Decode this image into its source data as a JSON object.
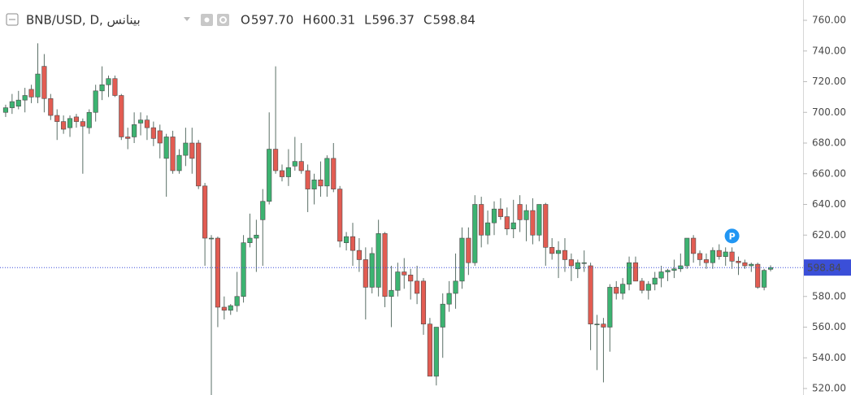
{
  "chart_data": {
    "type": "candlestick",
    "symbol": "BNB/USD, D, بينانس",
    "ohlc_header": [
      {
        "key": "O",
        "value": "597.70"
      },
      {
        "key": "H",
        "value": "600.31"
      },
      {
        "key": "L",
        "value": "596.37"
      },
      {
        "key": "C",
        "value": "598.84"
      }
    ],
    "marker": "P",
    "up_color": "#3cb371",
    "down_color": "#e25c52",
    "wick_color": "#5a6f66",
    "price_line_color": "#3b4fd8",
    "last_price": {
      "value": 598.84,
      "label": "598.84"
    },
    "ylim": [
      520,
      760
    ],
    "yticks": [
      {
        "value": 520,
        "label": "520.00"
      },
      {
        "value": 540,
        "label": "540.00"
      },
      {
        "value": 560,
        "label": "560.00"
      },
      {
        "value": 580,
        "label": "580.00"
      },
      {
        "value": 600,
        "label": "600.00"
      },
      {
        "value": 620,
        "label": "620.00"
      },
      {
        "value": 640,
        "label": "640.00"
      },
      {
        "value": 660,
        "label": "660.00"
      },
      {
        "value": 680,
        "label": "680.00"
      },
      {
        "value": 700,
        "label": "700.00"
      },
      {
        "value": 720,
        "label": "720.00"
      },
      {
        "value": 740,
        "label": "740.00"
      },
      {
        "value": 760,
        "label": "760.00"
      }
    ],
    "open": [
      700,
      703,
      704,
      708,
      715,
      710,
      730,
      709,
      698,
      694,
      690,
      697,
      694,
      690,
      700,
      714,
      718,
      722,
      711,
      684,
      684,
      693,
      695,
      690,
      688,
      670,
      684,
      662,
      672,
      680,
      680,
      652,
      618,
      618,
      573,
      571,
      574,
      580,
      615,
      618,
      630,
      642,
      676,
      662,
      658,
      665,
      668,
      662,
      650,
      656,
      652,
      670,
      650,
      615,
      619,
      610,
      604,
      586,
      586,
      621,
      580,
      584,
      596,
      594,
      590,
      590,
      562,
      528,
      560,
      575,
      582,
      590,
      618,
      602,
      640,
      620,
      628,
      637,
      632,
      624,
      640,
      630,
      636,
      620,
      640,
      612,
      608,
      610,
      604,
      598,
      602,
      600,
      562,
      562,
      560,
      586,
      582,
      588,
      602,
      590,
      584,
      588,
      592,
      596,
      597,
      598,
      600,
      618,
      608,
      604,
      602,
      610,
      606,
      609,
      603,
      602,
      600,
      601,
      586,
      597.7
    ],
    "high": [
      705,
      712,
      714,
      716,
      718,
      745,
      738,
      712,
      702,
      698,
      698,
      699,
      696,
      702,
      718,
      730,
      724,
      724,
      712,
      690,
      700,
      700,
      698,
      694,
      692,
      686,
      688,
      676,
      690,
      690,
      682,
      654,
      620,
      619,
      580,
      575,
      596,
      620,
      634,
      630,
      650,
      700,
      730,
      666,
      676,
      684,
      680,
      666,
      660,
      668,
      672,
      680,
      652,
      622,
      628,
      618,
      612,
      612,
      630,
      622,
      600,
      602,
      605,
      598,
      600,
      592,
      566,
      558,
      582,
      590,
      608,
      625,
      625,
      646,
      645,
      636,
      642,
      644,
      638,
      643,
      646,
      640,
      644,
      640,
      641,
      618,
      616,
      618,
      608,
      604,
      610,
      602,
      568,
      566,
      588,
      590,
      592,
      606,
      606,
      592,
      590,
      596,
      600,
      598,
      604,
      608,
      618,
      620,
      610,
      608,
      612,
      614,
      612,
      612,
      606,
      604,
      602,
      602,
      598,
      600.31
    ],
    "low": [
      697,
      699,
      702,
      700,
      706,
      706,
      700,
      695,
      682,
      686,
      684,
      690,
      660,
      686,
      694,
      708,
      710,
      710,
      682,
      676,
      680,
      685,
      682,
      678,
      670,
      645,
      660,
      660,
      665,
      660,
      650,
      600,
      512,
      560,
      565,
      568,
      570,
      576,
      612,
      596,
      600,
      640,
      660,
      655,
      652,
      662,
      660,
      635,
      640,
      645,
      645,
      648,
      612,
      610,
      600,
      596,
      565,
      582,
      580,
      573,
      560,
      580,
      585,
      578,
      575,
      555,
      528,
      522,
      540,
      570,
      572,
      585,
      594,
      600,
      612,
      614,
      620,
      630,
      620,
      618,
      622,
      616,
      614,
      616,
      600,
      604,
      592,
      596,
      590,
      592,
      596,
      545,
      532,
      524,
      544,
      578,
      578,
      584,
      590,
      582,
      578,
      584,
      586,
      590,
      592,
      596,
      598,
      602,
      600,
      598,
      598,
      604,
      600,
      598,
      594,
      598,
      596,
      585,
      584,
      596.37
    ],
    "close": [
      703,
      707,
      708,
      711,
      710,
      725,
      709,
      698,
      694,
      689,
      696,
      694,
      691,
      700,
      714,
      718,
      722,
      711,
      684,
      683,
      692,
      695,
      690,
      683,
      680,
      684,
      662,
      672,
      680,
      670,
      652,
      618,
      618,
      573,
      571,
      574,
      580,
      615,
      618,
      620,
      642,
      676,
      662,
      658,
      664,
      668,
      662,
      650,
      656,
      652,
      670,
      650,
      616,
      619,
      610,
      604,
      586,
      608,
      621,
      580,
      584,
      596,
      594,
      590,
      582,
      562,
      528,
      560,
      575,
      582,
      590,
      618,
      602,
      640,
      620,
      628,
      637,
      632,
      624,
      628,
      630,
      636,
      620,
      640,
      612,
      608,
      610,
      604,
      600,
      602,
      602,
      562,
      562,
      560,
      586,
      582,
      588,
      602,
      590,
      584,
      588,
      592,
      596,
      597,
      598,
      600,
      618,
      608,
      604,
      602,
      610,
      606,
      609,
      603,
      602,
      600,
      601,
      586,
      597,
      598.84
    ]
  }
}
